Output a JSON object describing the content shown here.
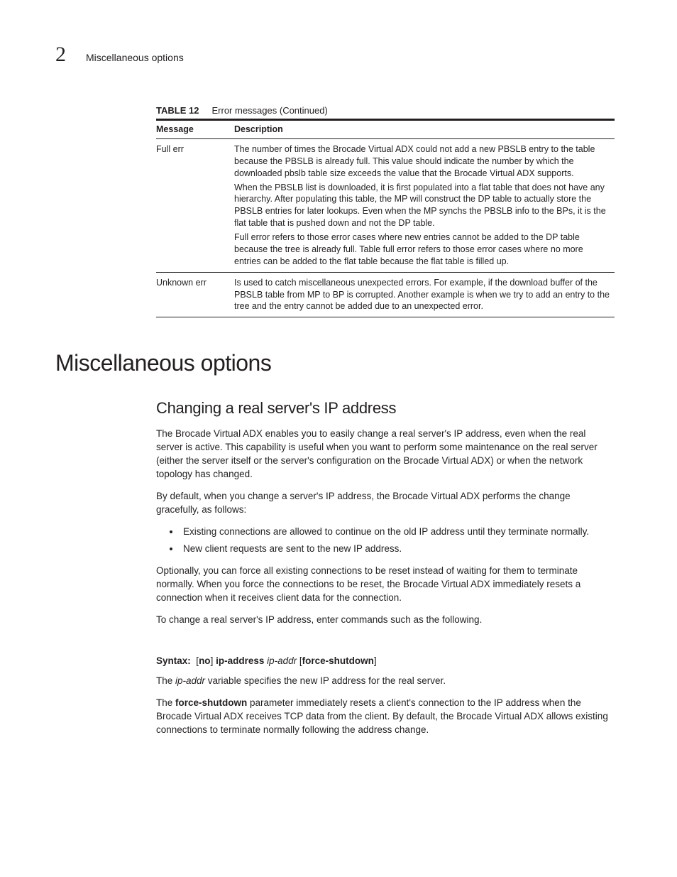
{
  "header": {
    "chapter": "2",
    "title": "Miscellaneous options"
  },
  "table": {
    "caption_label": "TABLE 12",
    "caption_text": "Error messages (Continued)",
    "columns": [
      "Message",
      "Description"
    ],
    "rows": [
      {
        "message": "Full err",
        "paragraphs": [
          "The number of times the Brocade Virtual ADX could not add a new PBSLB entry to the table because the PBSLB is already full. This value should indicate the number by which the downloaded pbslb table size exceeds the value that the Brocade Virtual ADX supports.",
          "When the PBSLB list is downloaded, it is first populated into a flat table that does not have any hierarchy. After populating this table, the MP will construct the DP table to actually store the PBSLB entries for later lookups. Even when the MP synchs the PBSLB info to the BPs, it is the flat table that is pushed down and not the DP table.",
          "Full error refers to those error cases where new entries cannot be added to the DP table because the tree is already full. Table full error refers to those error cases where no more entries can be added to the flat table because the flat table is filled up."
        ]
      },
      {
        "message": "Unknown err",
        "paragraphs": [
          "Is used to catch miscellaneous unexpected errors. For example, if the download buffer of the PBSLB table from MP to BP is corrupted. Another example is when we try to add an entry to the tree and the entry cannot be added due to an unexpected error."
        ]
      }
    ]
  },
  "h1": "Miscellaneous options",
  "section": {
    "h2": "Changing a real server's IP address",
    "p1": "The Brocade Virtual ADX enables you to easily change a real server's IP address, even when the real server is active. This capability is useful when you want to perform some maintenance on the real server (either the server itself or the server's configuration on the Brocade Virtual ADX) or when the network topology has changed.",
    "p2": "By default, when you change a server's IP address, the Brocade Virtual ADX performs the change gracefully, as follows:",
    "bullets": [
      "Existing connections are allowed to continue on the old IP address until they terminate normally.",
      "New client requests are sent to the new IP address."
    ],
    "p3": "Optionally, you can force all existing connections to be reset instead of waiting for them to terminate normally. When you force the connections to be reset, the Brocade Virtual ADX immediately resets a connection when it receives client data for the connection.",
    "p4": "To change a real server's IP address, enter commands such as the following.",
    "syntax": {
      "label": "Syntax:",
      "seg1": "[",
      "seg2": "no",
      "seg3": "] ",
      "seg4": "ip-address",
      "seg5": " ",
      "seg6": "ip-addr",
      "seg7": " [",
      "seg8": "force-shutdown",
      "seg9": "]"
    },
    "p5_pre": "The ",
    "p5_ital": "ip-addr",
    "p5_post": " variable specifies the new IP address for the real server.",
    "p6_pre": "The ",
    "p6_bold": "force-shutdown",
    "p6_post": " parameter immediately resets a client's connection to the IP address when the Brocade Virtual ADX receives TCP data from the client. By default, the Brocade Virtual ADX allows existing connections to terminate normally following the address change."
  }
}
